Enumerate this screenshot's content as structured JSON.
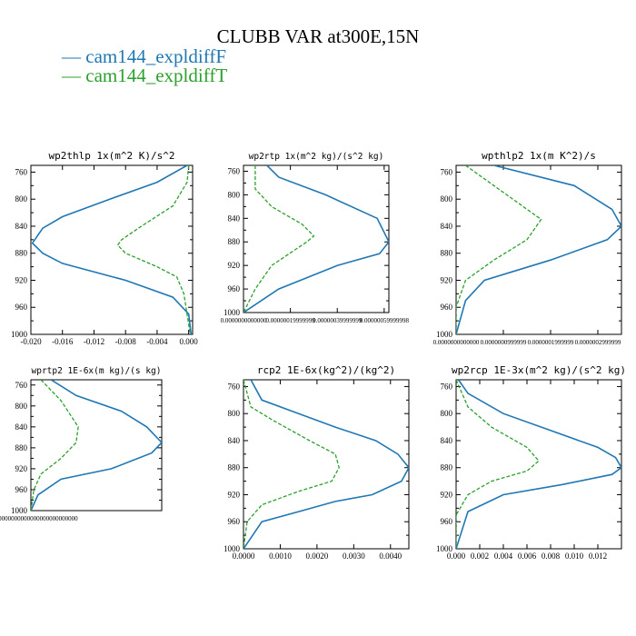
{
  "title": "CLUBB VAR at300E,15N",
  "colors": {
    "cam144_expldiffF": "#1f77b4",
    "cam144_expldiffT": "#2ca02c",
    "axis": "#000000"
  },
  "legend": [
    {
      "label": "— cam144_expldiffF",
      "color": "#1f77b4",
      "style": "solid"
    },
    {
      "label": "— cam144_expldiffT",
      "color": "#2ca02c",
      "style": "dashed"
    }
  ],
  "chart_data": [
    {
      "type": "line",
      "title": "wp2thlp  1x(m^2 K)/s^2",
      "xlim": [
        -0.02,
        0.0005
      ],
      "ylim": [
        1000,
        750
      ],
      "xticks": [
        -0.02,
        -0.016,
        -0.012,
        -0.008,
        -0.004,
        0.0
      ],
      "xtick_labels": [
        "-0.020",
        "-0.016",
        "-0.012",
        "-0.008",
        "-0.004",
        "0.000"
      ],
      "yticks": [
        760,
        800,
        840,
        880,
        920,
        960,
        1000
      ],
      "series": [
        {
          "name": "cam144_expldiffF",
          "x": [
            -0.0002,
            -0.004,
            -0.01,
            -0.016,
            -0.0185,
            -0.0198,
            -0.0185,
            -0.016,
            -0.008,
            -0.002,
            0.0,
            0.0003
          ],
          "y": [
            750,
            775,
            800,
            826,
            843,
            865,
            880,
            895,
            920,
            945,
            970,
            1000
          ]
        },
        {
          "name": "cam144_expldiffT",
          "x": [
            0.0,
            -0.0002,
            -0.002,
            -0.006,
            -0.0085,
            -0.009,
            -0.008,
            -0.004,
            -0.0015,
            -0.0006,
            -0.0002,
            0.0002
          ],
          "y": [
            750,
            775,
            810,
            840,
            860,
            868,
            880,
            900,
            915,
            940,
            970,
            1000
          ]
        }
      ]
    },
    {
      "type": "line",
      "title": "wp2rtp  1x(m^2 kg)/(s^2 kg)",
      "xlim": [
        0.0,
        6.2e-07
      ],
      "ylim": [
        1000,
        750
      ],
      "xticks": [
        0.0,
        2e-07,
        4e-07,
        6e-07
      ],
      "xtick_labels": [
        "0.0000000000000",
        "0.00000019999999",
        "0.00000039999999",
        "0.00000059999998"
      ],
      "yticks": [
        760,
        800,
        840,
        880,
        920,
        960,
        1000
      ],
      "series": [
        {
          "name": "cam144_expldiffF",
          "x": [
            1e-07,
            1.5e-07,
            3.5e-07,
            5.7e-07,
            6.2e-07,
            5.8e-07,
            4e-07,
            1.5e-07,
            0.0
          ],
          "y": [
            750,
            770,
            800,
            840,
            880,
            900,
            920,
            960,
            1000
          ]
        },
        {
          "name": "cam144_expldiffT",
          "x": [
            5e-08,
            5e-08,
            1.2e-07,
            2.5e-07,
            3e-07,
            2.7e-07,
            1.2e-07,
            5e-08,
            0.0
          ],
          "y": [
            750,
            790,
            820,
            850,
            870,
            880,
            920,
            960,
            1000
          ]
        }
      ]
    },
    {
      "type": "line",
      "title": "wpthlp2  1x(m K^2)/s",
      "xlim": [
        0.0,
        3.5e-07
      ],
      "ylim": [
        1000,
        750
      ],
      "xticks": [
        0.0,
        1e-07,
        2e-07,
        3e-07
      ],
      "xtick_labels": [
        "0.0000000000000",
        "0.0000000999999",
        "0.0000001999999",
        "0.0000002999999"
      ],
      "yticks": [
        760,
        800,
        840,
        880,
        920,
        960,
        1000
      ],
      "series": [
        {
          "name": "cam144_expldiffF",
          "x": [
            8e-08,
            2.5e-07,
            3.3e-07,
            3.5e-07,
            3.2e-07,
            2e-07,
            6e-08,
            2e-08,
            0.0
          ],
          "y": [
            750,
            780,
            815,
            840,
            860,
            890,
            920,
            950,
            1000
          ]
        },
        {
          "name": "cam144_expldiffT",
          "x": [
            2e-08,
            8e-08,
            1.8e-07,
            1.5e-07,
            8e-08,
            2e-08,
            0.0,
            0.0
          ],
          "y": [
            750,
            780,
            830,
            860,
            890,
            920,
            960,
            1000
          ]
        }
      ]
    },
    {
      "type": "line",
      "title": "wprtp2  1E-6x(m kg)/(s kg)",
      "xlim": [
        0.0,
        1.3e-07
      ],
      "ylim": [
        1000,
        750
      ],
      "xticks": [
        0.0
      ],
      "xtick_labels": [
        "0.0000000000000000000000000000"
      ],
      "yticks": [
        760,
        800,
        840,
        880,
        920,
        960,
        1000
      ],
      "series": [
        {
          "name": "cam144_expldiffF",
          "x": [
            2e-08,
            4.5e-08,
            9e-08,
            1.15e-07,
            1.3e-07,
            1.2e-07,
            8e-08,
            3e-08,
            7e-09,
            0.0
          ],
          "y": [
            750,
            780,
            810,
            840,
            870,
            890,
            920,
            940,
            970,
            1000
          ]
        },
        {
          "name": "cam144_expldiffT",
          "x": [
            1e-08,
            3e-08,
            4.7e-08,
            4.5e-08,
            3e-08,
            1e-08,
            3e-09,
            0.0
          ],
          "y": [
            750,
            790,
            840,
            870,
            900,
            930,
            960,
            1000
          ]
        }
      ]
    },
    {
      "type": "line",
      "title": "rcp2  1E-6x(kg^2)/(kg^2)",
      "xlim": [
        0.0,
        0.0045
      ],
      "ylim": [
        1000,
        750
      ],
      "xticks": [
        0.0,
        0.001,
        0.002,
        0.003,
        0.004
      ],
      "xtick_labels": [
        "0.0000",
        "0.0010",
        "0.0020",
        "0.0030",
        "0.0040"
      ],
      "yticks": [
        760,
        800,
        840,
        880,
        920,
        960,
        1000
      ],
      "series": [
        {
          "name": "cam144_expldiffF",
          "x": [
            0.0002,
            0.0005,
            0.0015,
            0.0025,
            0.0036,
            0.0042,
            0.0045,
            0.0043,
            0.0035,
            0.0025,
            0.0015,
            0.0005,
            0.0
          ],
          "y": [
            750,
            780,
            800,
            820,
            840,
            860,
            880,
            900,
            920,
            930,
            945,
            960,
            1000
          ]
        },
        {
          "name": "cam144_expldiffT",
          "x": [
            0.0,
            0.0002,
            0.0008,
            0.0018,
            0.0025,
            0.0026,
            0.0024,
            0.0015,
            0.0005,
            0.0001,
            0.0
          ],
          "y": [
            750,
            790,
            810,
            840,
            860,
            880,
            900,
            915,
            935,
            960,
            1000
          ]
        }
      ]
    },
    {
      "type": "line",
      "title": "wp2rcp  1E-3x(m^2 kg)/(s^2 kg)",
      "xlim": [
        0.0,
        0.014
      ],
      "ylim": [
        1000,
        750
      ],
      "xticks": [
        0.0,
        0.002,
        0.004,
        0.006,
        0.008,
        0.01,
        0.012
      ],
      "xtick_labels": [
        "0.000",
        "0.002",
        "0.004",
        "0.006",
        "0.008",
        "0.010",
        "0.012"
      ],
      "yticks": [
        760,
        800,
        840,
        880,
        920,
        960,
        1000
      ],
      "series": [
        {
          "name": "cam144_expldiffF",
          "x": [
            0.0002,
            0.001,
            0.004,
            0.008,
            0.012,
            0.0135,
            0.014,
            0.0132,
            0.009,
            0.004,
            0.001,
            0.0
          ],
          "y": [
            750,
            770,
            800,
            825,
            850,
            865,
            880,
            890,
            905,
            920,
            945,
            1000
          ]
        },
        {
          "name": "cam144_expldiffT",
          "x": [
            0.0,
            0.001,
            0.003,
            0.006,
            0.007,
            0.006,
            0.003,
            0.001,
            0.0,
            0.0
          ],
          "y": [
            750,
            790,
            820,
            850,
            870,
            885,
            900,
            920,
            950,
            1000
          ]
        }
      ]
    }
  ]
}
